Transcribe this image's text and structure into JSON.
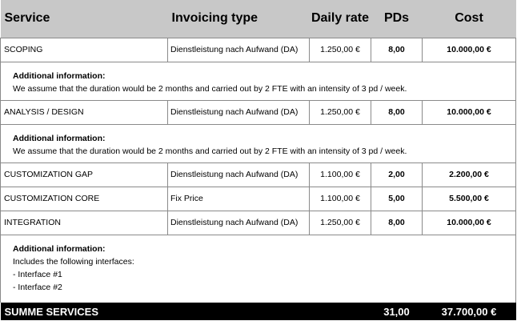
{
  "headers": {
    "service": "Service",
    "invoicing": "Invoicing type",
    "rate": "Daily rate",
    "pds": "PDs",
    "cost": "Cost"
  },
  "rows": [
    {
      "service": "SCOPING",
      "invoicing": "Dienstleistung nach Aufwand (DA)",
      "rate": "1.250,00 €",
      "pds": "8,00",
      "cost": "10.000,00 €"
    },
    {
      "service": "ANALYSIS / DESIGN",
      "invoicing": "Dienstleistung nach Aufwand (DA)",
      "rate": "1.250,00 €",
      "pds": "8,00",
      "cost": "10.000,00 €"
    },
    {
      "service": "CUSTOMIZATION GAP",
      "invoicing": "Dienstleistung nach Aufwand (DA)",
      "rate": "1.100,00 €",
      "pds": "2,00",
      "cost": "2.200,00 €"
    },
    {
      "service": "CUSTOMIZATION CORE",
      "invoicing": "Fix Price",
      "rate": "1.100,00 €",
      "pds": "5,00",
      "cost": "5.500,00 €"
    },
    {
      "service": "INTEGRATION",
      "invoicing": "Dienstleistung nach Aufwand (DA)",
      "rate": "1.250,00 €",
      "pds": "8,00",
      "cost": "10.000,00 €"
    }
  ],
  "info": [
    {
      "title": "Additional information:",
      "lines": [
        "We assume that the duration would be 2 months and carried out by 2 FTE with an intensity of 3 pd / week."
      ]
    },
    {
      "title": "Additional information:",
      "lines": [
        "We assume that the duration would be 2 months and carried out by 2 FTE with an intensity of 3 pd / week."
      ]
    },
    {
      "title": "Additional information:",
      "lines": [
        "Includes the following interfaces:",
        "- Interface #1",
        "- Interface #2"
      ]
    }
  ],
  "summary": {
    "label": "SUMME SERVICES",
    "pds": "31,00",
    "cost": "37.700,00 €"
  },
  "colors": {
    "header_bg": "#c8c8c8",
    "summary_bg": "#000000",
    "summary_text": "#ffffff",
    "grid": "#8a8a8a"
  }
}
